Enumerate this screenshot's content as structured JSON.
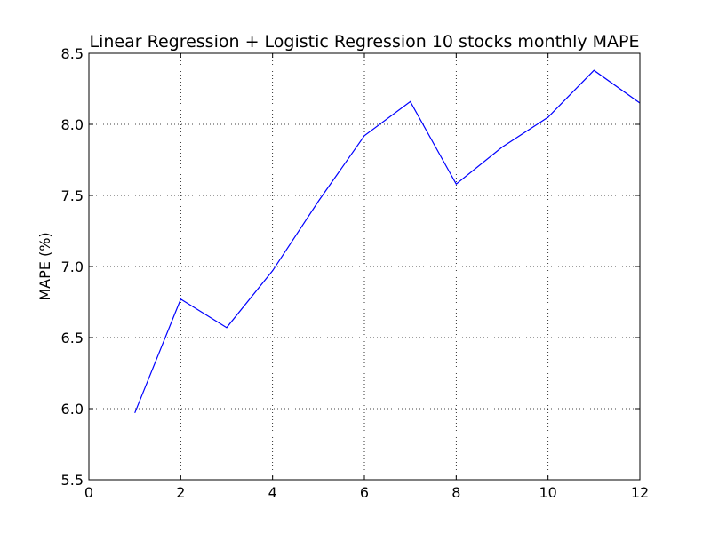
{
  "chart_data": {
    "type": "line",
    "title": "Linear Regression + Logistic Regression 10 stocks monthly MAPE",
    "xlabel": "",
    "ylabel": "MAPE (%)",
    "xlim": [
      0,
      12
    ],
    "ylim": [
      5.5,
      8.5
    ],
    "xticks": [
      0,
      2,
      4,
      6,
      8,
      10,
      12
    ],
    "yticks": [
      5.5,
      6.0,
      6.5,
      7.0,
      7.5,
      8.0,
      8.5
    ],
    "xtick_labels": [
      "0",
      "2",
      "4",
      "6",
      "8",
      "10",
      "12"
    ],
    "ytick_labels": [
      "5.5",
      "6.0",
      "6.5",
      "7.0",
      "7.5",
      "8.0",
      "8.5"
    ],
    "grid": true,
    "legend": "none",
    "series": [
      {
        "color": "#0000ff",
        "x": [
          1,
          2,
          3,
          4,
          5,
          6,
          7,
          8,
          9,
          10,
          11,
          12
        ],
        "y": [
          5.97,
          6.77,
          6.57,
          6.97,
          7.46,
          7.92,
          8.16,
          7.58,
          7.84,
          8.05,
          8.38,
          8.15
        ]
      }
    ]
  }
}
